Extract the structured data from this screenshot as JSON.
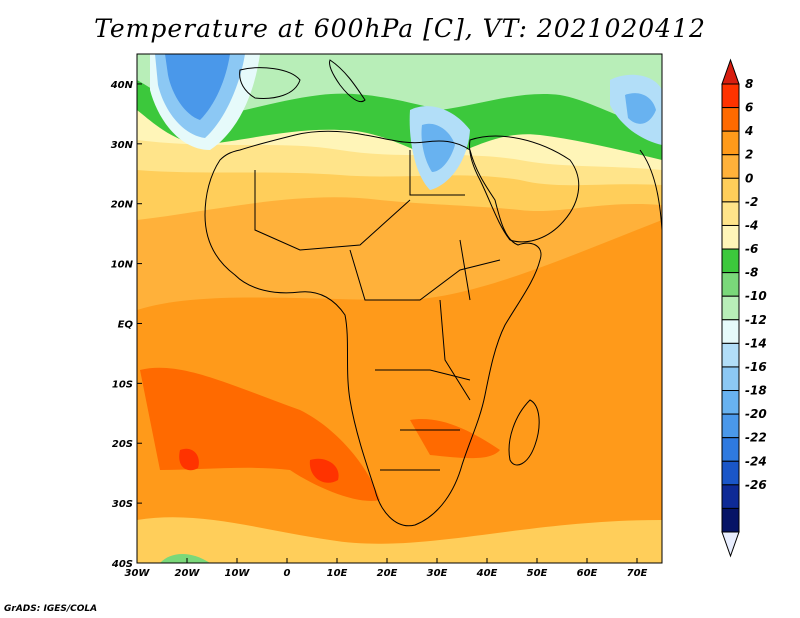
{
  "title": "Temperature at 600hPa [C], VT: 2021020412",
  "credit": "GrADS: IGES/COLA",
  "map": {
    "projection": "latlon",
    "lon_range": [
      -30,
      75
    ],
    "lat_range": [
      -40,
      45
    ],
    "lon_ticks": [
      {
        "value": -30,
        "label": "30W"
      },
      {
        "value": -20,
        "label": "20W"
      },
      {
        "value": -10,
        "label": "10W"
      },
      {
        "value": 0,
        "label": "0"
      },
      {
        "value": 10,
        "label": "10E"
      },
      {
        "value": 20,
        "label": "20E"
      },
      {
        "value": 30,
        "label": "30E"
      },
      {
        "value": 40,
        "label": "40E"
      },
      {
        "value": 50,
        "label": "50E"
      },
      {
        "value": 60,
        "label": "60E"
      },
      {
        "value": 70,
        "label": "70E"
      }
    ],
    "lat_ticks": [
      {
        "value": 40,
        "label": "40N"
      },
      {
        "value": 30,
        "label": "30N"
      },
      {
        "value": 20,
        "label": "20N"
      },
      {
        "value": 10,
        "label": "10N"
      },
      {
        "value": 0,
        "label": "EQ"
      },
      {
        "value": -10,
        "label": "10S"
      },
      {
        "value": -20,
        "label": "20S"
      },
      {
        "value": -30,
        "label": "30S"
      },
      {
        "value": -40,
        "label": "40S"
      }
    ]
  },
  "colorbar": {
    "levels": [
      8,
      6,
      4,
      2,
      0,
      -2,
      -4,
      -6,
      -8,
      -10,
      -12,
      -14,
      -16,
      -18,
      -20,
      -22,
      -24,
      -26
    ],
    "colors": [
      "#ff3300",
      "#ff6a00",
      "#ff9a1a",
      "#ffb13a",
      "#ffce5a",
      "#ffe48a",
      "#fff5b8",
      "#3cc83c",
      "#7ad87a",
      "#b8eeb8",
      "#e6fafa",
      "#b2def8",
      "#8cc8f4",
      "#68b2f0",
      "#4a98ea",
      "#2f7ae0",
      "#1a56c8",
      "#0e2a96",
      "#061466"
    ],
    "top_color": "#d81e10",
    "bottom_color": "#e8eeff"
  }
}
